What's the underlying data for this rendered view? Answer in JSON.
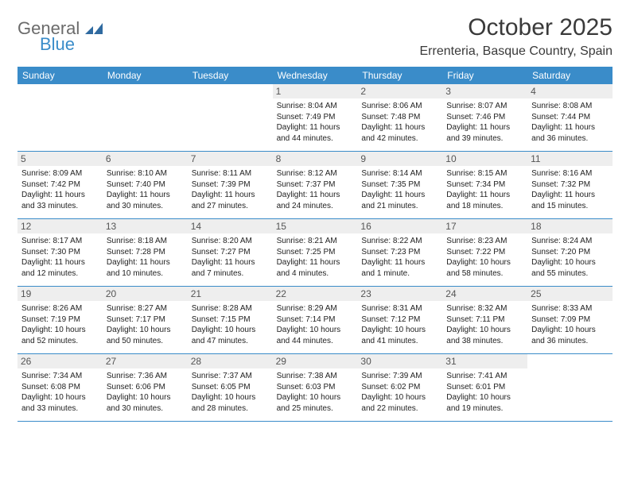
{
  "brand": {
    "line1": "General",
    "line2": "Blue",
    "line1_color": "#6b6b6b",
    "line2_color": "#3a8cc9",
    "icon_color": "#2f6aa0"
  },
  "header": {
    "title": "October 2025",
    "location": "Errenteria, Basque Country, Spain"
  },
  "style": {
    "header_bg": "#3a8cc9",
    "header_text": "#ffffff",
    "daynum_bg": "#eeeeee",
    "daynum_color": "#555555",
    "body_text": "#222222",
    "rule_color": "#3a8cc9",
    "weekday_fontsize": 12,
    "daynum_fontsize": 12,
    "body_fontsize": 10
  },
  "weekdays": [
    "Sunday",
    "Monday",
    "Tuesday",
    "Wednesday",
    "Thursday",
    "Friday",
    "Saturday"
  ],
  "weeks": [
    [
      {
        "n": "",
        "sunrise": "",
        "sunset": "",
        "daylight": ""
      },
      {
        "n": "",
        "sunrise": "",
        "sunset": "",
        "daylight": ""
      },
      {
        "n": "",
        "sunrise": "",
        "sunset": "",
        "daylight": ""
      },
      {
        "n": "1",
        "sunrise": "Sunrise: 8:04 AM",
        "sunset": "Sunset: 7:49 PM",
        "daylight": "Daylight: 11 hours and 44 minutes."
      },
      {
        "n": "2",
        "sunrise": "Sunrise: 8:06 AM",
        "sunset": "Sunset: 7:48 PM",
        "daylight": "Daylight: 11 hours and 42 minutes."
      },
      {
        "n": "3",
        "sunrise": "Sunrise: 8:07 AM",
        "sunset": "Sunset: 7:46 PM",
        "daylight": "Daylight: 11 hours and 39 minutes."
      },
      {
        "n": "4",
        "sunrise": "Sunrise: 8:08 AM",
        "sunset": "Sunset: 7:44 PM",
        "daylight": "Daylight: 11 hours and 36 minutes."
      }
    ],
    [
      {
        "n": "5",
        "sunrise": "Sunrise: 8:09 AM",
        "sunset": "Sunset: 7:42 PM",
        "daylight": "Daylight: 11 hours and 33 minutes."
      },
      {
        "n": "6",
        "sunrise": "Sunrise: 8:10 AM",
        "sunset": "Sunset: 7:40 PM",
        "daylight": "Daylight: 11 hours and 30 minutes."
      },
      {
        "n": "7",
        "sunrise": "Sunrise: 8:11 AM",
        "sunset": "Sunset: 7:39 PM",
        "daylight": "Daylight: 11 hours and 27 minutes."
      },
      {
        "n": "8",
        "sunrise": "Sunrise: 8:12 AM",
        "sunset": "Sunset: 7:37 PM",
        "daylight": "Daylight: 11 hours and 24 minutes."
      },
      {
        "n": "9",
        "sunrise": "Sunrise: 8:14 AM",
        "sunset": "Sunset: 7:35 PM",
        "daylight": "Daylight: 11 hours and 21 minutes."
      },
      {
        "n": "10",
        "sunrise": "Sunrise: 8:15 AM",
        "sunset": "Sunset: 7:34 PM",
        "daylight": "Daylight: 11 hours and 18 minutes."
      },
      {
        "n": "11",
        "sunrise": "Sunrise: 8:16 AM",
        "sunset": "Sunset: 7:32 PM",
        "daylight": "Daylight: 11 hours and 15 minutes."
      }
    ],
    [
      {
        "n": "12",
        "sunrise": "Sunrise: 8:17 AM",
        "sunset": "Sunset: 7:30 PM",
        "daylight": "Daylight: 11 hours and 12 minutes."
      },
      {
        "n": "13",
        "sunrise": "Sunrise: 8:18 AM",
        "sunset": "Sunset: 7:28 PM",
        "daylight": "Daylight: 11 hours and 10 minutes."
      },
      {
        "n": "14",
        "sunrise": "Sunrise: 8:20 AM",
        "sunset": "Sunset: 7:27 PM",
        "daylight": "Daylight: 11 hours and 7 minutes."
      },
      {
        "n": "15",
        "sunrise": "Sunrise: 8:21 AM",
        "sunset": "Sunset: 7:25 PM",
        "daylight": "Daylight: 11 hours and 4 minutes."
      },
      {
        "n": "16",
        "sunrise": "Sunrise: 8:22 AM",
        "sunset": "Sunset: 7:23 PM",
        "daylight": "Daylight: 11 hours and 1 minute."
      },
      {
        "n": "17",
        "sunrise": "Sunrise: 8:23 AM",
        "sunset": "Sunset: 7:22 PM",
        "daylight": "Daylight: 10 hours and 58 minutes."
      },
      {
        "n": "18",
        "sunrise": "Sunrise: 8:24 AM",
        "sunset": "Sunset: 7:20 PM",
        "daylight": "Daylight: 10 hours and 55 minutes."
      }
    ],
    [
      {
        "n": "19",
        "sunrise": "Sunrise: 8:26 AM",
        "sunset": "Sunset: 7:19 PM",
        "daylight": "Daylight: 10 hours and 52 minutes."
      },
      {
        "n": "20",
        "sunrise": "Sunrise: 8:27 AM",
        "sunset": "Sunset: 7:17 PM",
        "daylight": "Daylight: 10 hours and 50 minutes."
      },
      {
        "n": "21",
        "sunrise": "Sunrise: 8:28 AM",
        "sunset": "Sunset: 7:15 PM",
        "daylight": "Daylight: 10 hours and 47 minutes."
      },
      {
        "n": "22",
        "sunrise": "Sunrise: 8:29 AM",
        "sunset": "Sunset: 7:14 PM",
        "daylight": "Daylight: 10 hours and 44 minutes."
      },
      {
        "n": "23",
        "sunrise": "Sunrise: 8:31 AM",
        "sunset": "Sunset: 7:12 PM",
        "daylight": "Daylight: 10 hours and 41 minutes."
      },
      {
        "n": "24",
        "sunrise": "Sunrise: 8:32 AM",
        "sunset": "Sunset: 7:11 PM",
        "daylight": "Daylight: 10 hours and 38 minutes."
      },
      {
        "n": "25",
        "sunrise": "Sunrise: 8:33 AM",
        "sunset": "Sunset: 7:09 PM",
        "daylight": "Daylight: 10 hours and 36 minutes."
      }
    ],
    [
      {
        "n": "26",
        "sunrise": "Sunrise: 7:34 AM",
        "sunset": "Sunset: 6:08 PM",
        "daylight": "Daylight: 10 hours and 33 minutes."
      },
      {
        "n": "27",
        "sunrise": "Sunrise: 7:36 AM",
        "sunset": "Sunset: 6:06 PM",
        "daylight": "Daylight: 10 hours and 30 minutes."
      },
      {
        "n": "28",
        "sunrise": "Sunrise: 7:37 AM",
        "sunset": "Sunset: 6:05 PM",
        "daylight": "Daylight: 10 hours and 28 minutes."
      },
      {
        "n": "29",
        "sunrise": "Sunrise: 7:38 AM",
        "sunset": "Sunset: 6:03 PM",
        "daylight": "Daylight: 10 hours and 25 minutes."
      },
      {
        "n": "30",
        "sunrise": "Sunrise: 7:39 AM",
        "sunset": "Sunset: 6:02 PM",
        "daylight": "Daylight: 10 hours and 22 minutes."
      },
      {
        "n": "31",
        "sunrise": "Sunrise: 7:41 AM",
        "sunset": "Sunset: 6:01 PM",
        "daylight": "Daylight: 10 hours and 19 minutes."
      },
      {
        "n": "",
        "sunrise": "",
        "sunset": "",
        "daylight": ""
      }
    ]
  ]
}
